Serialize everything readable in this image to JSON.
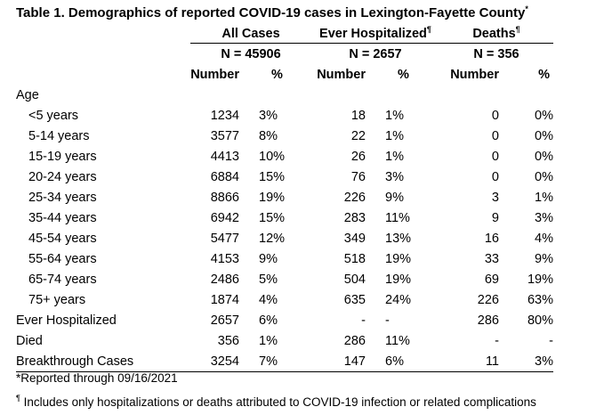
{
  "title": "Table 1. Demographics of reported COVID-19 cases in Lexington-Fayette County",
  "title_mark": "*",
  "groups": [
    {
      "label": "All Cases",
      "mark": "",
      "n": "N = 45906"
    },
    {
      "label": "Ever Hospitalized",
      "mark": "¶",
      "n": "N = 2657"
    },
    {
      "label": "Deaths",
      "mark": "¶",
      "n": "N = 356"
    }
  ],
  "col_headers": {
    "number": "Number",
    "pct": "%"
  },
  "section_age": "Age",
  "rows": [
    {
      "label": "<5 years",
      "a": "1234",
      "ap": "3%",
      "h": "18",
      "hp": "1%",
      "d": "0",
      "dp": "0%"
    },
    {
      "label": "5-14 years",
      "a": "3577",
      "ap": "8%",
      "h": "22",
      "hp": "1%",
      "d": "0",
      "dp": "0%"
    },
    {
      "label": "15-19 years",
      "a": "4413",
      "ap": "10%",
      "h": "26",
      "hp": "1%",
      "d": "0",
      "dp": "0%"
    },
    {
      "label": "20-24 years",
      "a": "6884",
      "ap": "15%",
      "h": "76",
      "hp": "3%",
      "d": "0",
      "dp": "0%"
    },
    {
      "label": "25-34 years",
      "a": "8866",
      "ap": "19%",
      "h": "226",
      "hp": "9%",
      "d": "3",
      "dp": "1%"
    },
    {
      "label": "35-44 years",
      "a": "6942",
      "ap": "15%",
      "h": "283",
      "hp": "11%",
      "d": "9",
      "dp": "3%"
    },
    {
      "label": "45-54 years",
      "a": "5477",
      "ap": "12%",
      "h": "349",
      "hp": "13%",
      "d": "16",
      "dp": "4%"
    },
    {
      "label": "55-64 years",
      "a": "4153",
      "ap": "9%",
      "h": "518",
      "hp": "19%",
      "d": "33",
      "dp": "9%"
    },
    {
      "label": "65-74 years",
      "a": "2486",
      "ap": "5%",
      "h": "504",
      "hp": "19%",
      "d": "69",
      "dp": "19%"
    },
    {
      "label": "75+ years",
      "a": "1874",
      "ap": "4%",
      "h": "635",
      "hp": "24%",
      "d": "226",
      "dp": "63%"
    }
  ],
  "other_rows": [
    {
      "label": "Ever Hospitalized",
      "a": "2657",
      "ap": "6%",
      "h": "-",
      "hp": "-",
      "d": "286",
      "dp": "80%"
    },
    {
      "label": "Died",
      "a": "356",
      "ap": "1%",
      "h": "286",
      "hp": "11%",
      "d": "-",
      "dp": "-"
    },
    {
      "label": "Breakthrough Cases",
      "a": "3254",
      "ap": "7%",
      "h": "147",
      "hp": "6%",
      "d": "11",
      "dp": "3%"
    }
  ],
  "footnotes": {
    "reported": "*Reported through 09/16/2021",
    "mark": "¶",
    "note": " Includes only hospitalizations or deaths attributed to COVID-19 infection or related complications"
  }
}
